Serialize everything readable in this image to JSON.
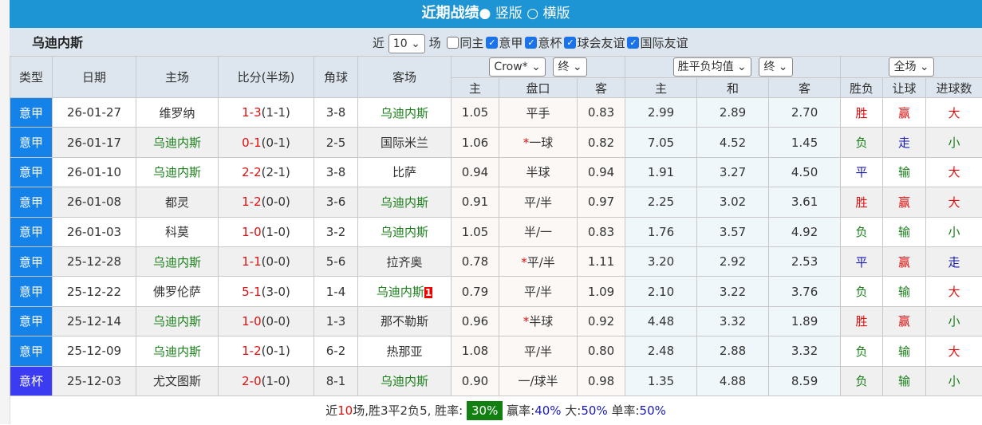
{
  "title": {
    "main": "近期战绩",
    "opt1": "竖版",
    "opt2": "横版"
  },
  "filter": {
    "team": "乌迪内斯",
    "near": "近",
    "count": "10",
    "unit": "场",
    "checks": [
      {
        "label": "同主",
        "checked": false
      },
      {
        "label": "意甲",
        "checked": true
      },
      {
        "label": "意杯",
        "checked": true
      },
      {
        "label": "球会友谊",
        "checked": true
      },
      {
        "label": "国际友谊",
        "checked": true
      }
    ]
  },
  "header": {
    "type": "类型",
    "date": "日期",
    "home": "主场",
    "score": "比分(半场)",
    "corner": "角球",
    "away": "客场",
    "company": "Crow*",
    "ah_stage": "终",
    "avg": "胜平负均值",
    "eu_stage": "终",
    "period": "全场",
    "sub": [
      "主",
      "盘口",
      "客",
      "主",
      "和",
      "客",
      "胜负",
      "让球",
      "进球数"
    ]
  },
  "rows": [
    {
      "type": "意甲",
      "date": "26-01-27",
      "home": "维罗纳",
      "homeTeam": false,
      "score": "1-3",
      "half": "(1-1)",
      "corner": "3-8",
      "away": "乌迪内斯",
      "awayTeam": true,
      "badge": "",
      "h": "1.05",
      "line": "平手",
      "star": false,
      "a": "0.83",
      "w": "2.99",
      "d": "2.89",
      "l": "2.70",
      "res": "胜",
      "ah": "赢",
      "ou": "大"
    },
    {
      "type": "意甲",
      "date": "26-01-17",
      "home": "乌迪内斯",
      "homeTeam": true,
      "score": "0-1",
      "half": "(0-1)",
      "corner": "2-5",
      "away": "国际米兰",
      "awayTeam": false,
      "badge": "",
      "h": "1.06",
      "line": "一球",
      "star": true,
      "a": "0.82",
      "w": "7.05",
      "d": "4.52",
      "l": "1.45",
      "res": "负",
      "ah": "走",
      "ou": "小"
    },
    {
      "type": "意甲",
      "date": "26-01-10",
      "home": "乌迪内斯",
      "homeTeam": true,
      "score": "2-2",
      "half": "(2-1)",
      "corner": "3-8",
      "away": "比萨",
      "awayTeam": false,
      "badge": "",
      "h": "0.94",
      "line": "半球",
      "star": false,
      "a": "0.94",
      "w": "1.91",
      "d": "3.27",
      "l": "4.50",
      "res": "平",
      "ah": "输",
      "ou": "大"
    },
    {
      "type": "意甲",
      "date": "26-01-08",
      "home": "都灵",
      "homeTeam": false,
      "score": "1-2",
      "half": "(0-0)",
      "corner": "3-6",
      "away": "乌迪内斯",
      "awayTeam": true,
      "badge": "",
      "h": "0.91",
      "line": "平/半",
      "star": false,
      "a": "0.97",
      "w": "2.25",
      "d": "3.02",
      "l": "3.61",
      "res": "胜",
      "ah": "赢",
      "ou": "大"
    },
    {
      "type": "意甲",
      "date": "26-01-03",
      "home": "科莫",
      "homeTeam": false,
      "score": "1-0",
      "half": "(1-0)",
      "corner": "3-2",
      "away": "乌迪内斯",
      "awayTeam": true,
      "badge": "",
      "h": "1.05",
      "line": "半/一",
      "star": false,
      "a": "0.83",
      "w": "1.76",
      "d": "3.57",
      "l": "4.92",
      "res": "负",
      "ah": "输",
      "ou": "小"
    },
    {
      "type": "意甲",
      "date": "25-12-28",
      "home": "乌迪内斯",
      "homeTeam": true,
      "score": "1-1",
      "half": "(0-0)",
      "corner": "5-6",
      "away": "拉齐奥",
      "awayTeam": false,
      "badge": "",
      "h": "0.78",
      "line": "平/半",
      "star": true,
      "a": "1.11",
      "w": "3.20",
      "d": "2.92",
      "l": "2.53",
      "res": "平",
      "ah": "赢",
      "ou": "走"
    },
    {
      "type": "意甲",
      "date": "25-12-22",
      "home": "佛罗伦萨",
      "homeTeam": false,
      "score": "5-1",
      "half": "(3-0)",
      "corner": "1-4",
      "away": "乌迪内斯",
      "awayTeam": true,
      "badge": "1",
      "h": "0.79",
      "line": "平/半",
      "star": false,
      "a": "1.09",
      "w": "2.10",
      "d": "3.22",
      "l": "3.76",
      "res": "负",
      "ah": "输",
      "ou": "大"
    },
    {
      "type": "意甲",
      "date": "25-12-14",
      "home": "乌迪内斯",
      "homeTeam": true,
      "score": "1-0",
      "half": "(0-0)",
      "corner": "1-3",
      "away": "那不勒斯",
      "awayTeam": false,
      "badge": "",
      "h": "0.96",
      "line": "半球",
      "star": true,
      "a": "0.92",
      "w": "4.48",
      "d": "3.32",
      "l": "1.89",
      "res": "胜",
      "ah": "赢",
      "ou": "小"
    },
    {
      "type": "意甲",
      "date": "25-12-09",
      "home": "乌迪内斯",
      "homeTeam": true,
      "score": "1-2",
      "half": "(0-1)",
      "corner": "6-2",
      "away": "热那亚",
      "awayTeam": false,
      "badge": "",
      "h": "1.08",
      "line": "平/半",
      "star": false,
      "a": "0.80",
      "w": "2.48",
      "d": "2.88",
      "l": "3.32",
      "res": "负",
      "ah": "输",
      "ou": "大"
    },
    {
      "type": "意杯",
      "date": "25-12-03",
      "home": "尤文图斯",
      "homeTeam": false,
      "score": "2-0",
      "half": "(1-0)",
      "corner": "8-1",
      "away": "乌迪内斯",
      "awayTeam": true,
      "badge": "",
      "h": "0.90",
      "line": "一/球半",
      "star": false,
      "a": "0.98",
      "w": "1.35",
      "d": "4.88",
      "l": "8.59",
      "res": "负",
      "ah": "输",
      "ou": "小"
    }
  ],
  "footer": {
    "p1": "近",
    "n": "10",
    "p2": "场,胜3平2负5, 胜率:",
    "winrate": "30%",
    "p3": "赢率:",
    "ahrate": "40%",
    "p4": " 大:",
    "overrate": "50%",
    "p5": " 单率:",
    "oddrate": "50%"
  },
  "colors": {
    "header": "#1d95d4",
    "league": "#1482e8",
    "cup": "#3b3bf2",
    "win": "#e01010",
    "draw": "#1a1ab8",
    "loss": "#1a7f1a"
  }
}
